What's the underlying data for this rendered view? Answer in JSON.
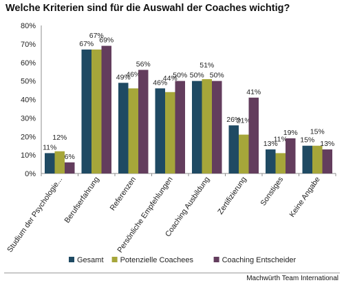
{
  "chart_data": {
    "type": "bar",
    "title": "Welche Kriterien sind für die Auswahl der Coaches wichtig?",
    "categories": [
      "Studium der Psychologie...",
      "Berufserfahrung",
      "Referenzen",
      "Persönliche Empfehlungen",
      "Coaching Ausbildung",
      "Zertifizierung",
      "Sonstiges",
      "Keine Angabe"
    ],
    "series": [
      {
        "name": "Gesamt",
        "values": [
          11,
          67,
          49,
          46,
          50,
          26,
          13,
          15
        ],
        "labels": [
          "11%",
          "67%",
          "49%",
          "46%",
          "50%",
          "26%",
          "13%",
          "15%"
        ],
        "color": "#1f4a63"
      },
      {
        "name": "Potenzielle Coachees",
        "values": [
          12,
          67,
          46,
          44,
          51,
          21,
          11,
          15
        ],
        "labels": [
          "12%",
          "67%",
          "46%",
          "44%",
          "51%",
          "21%",
          "11%",
          "15%"
        ],
        "color": "#a6a63a"
      },
      {
        "name": "Coaching Entscheider",
        "values": [
          6,
          69,
          56,
          50,
          50,
          41,
          19,
          13
        ],
        "labels": [
          "6%",
          "69%",
          "56%",
          "50%",
          "50%",
          "41%",
          "19%",
          "13%"
        ],
        "color": "#633d5d"
      }
    ],
    "ylim": [
      0,
      80
    ],
    "yticks": [
      "0%",
      "10%",
      "20%",
      "30%",
      "40%",
      "50%",
      "60%",
      "70%",
      "80%"
    ],
    "xlabel": "",
    "ylabel": "",
    "grid": false,
    "legend": "bottom"
  },
  "footer": {
    "credit": "Machwürth Team International"
  }
}
